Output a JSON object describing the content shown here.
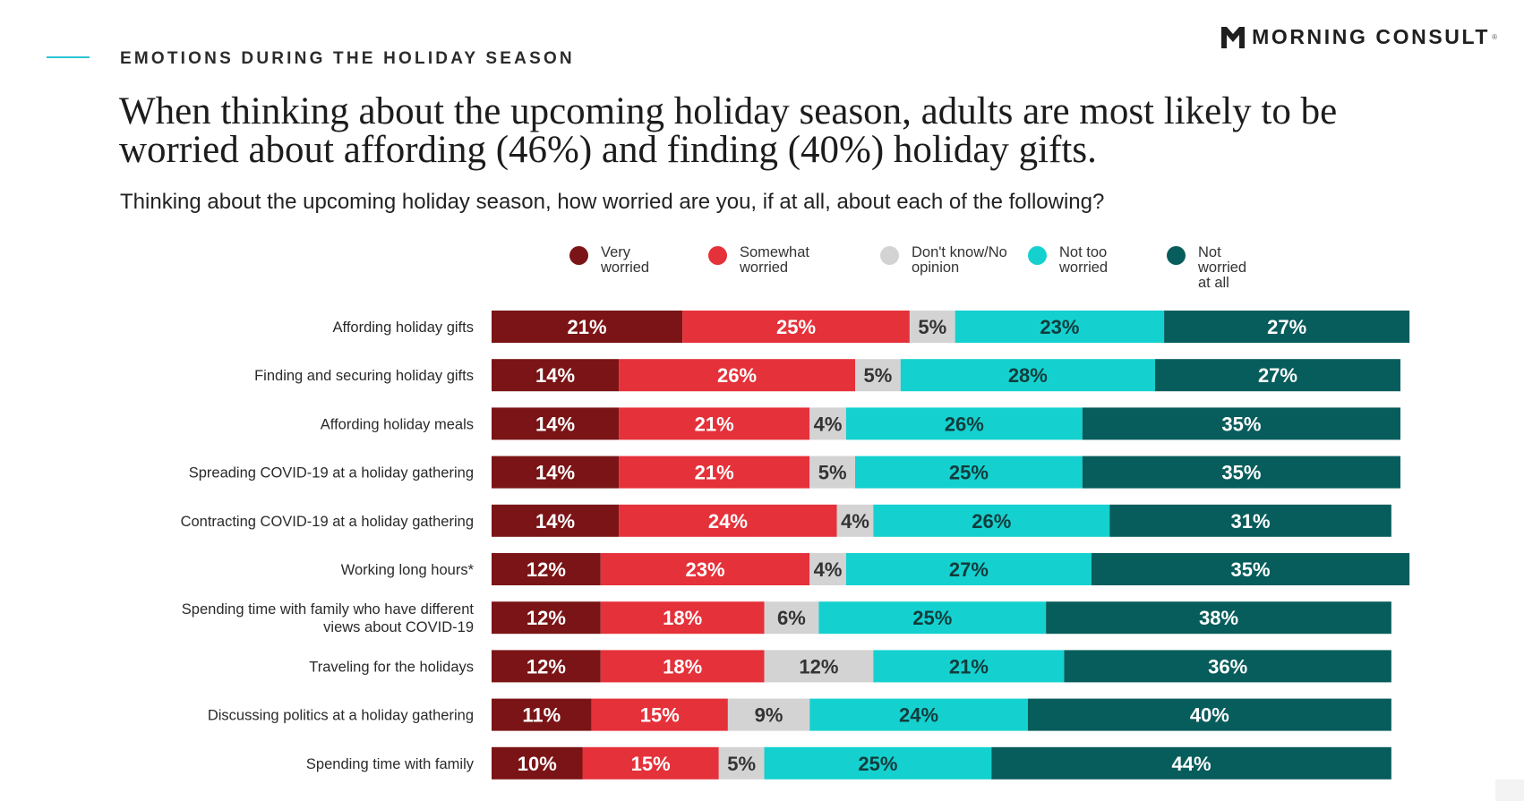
{
  "section_label": "EMOTIONS DURING THE HOLIDAY SEASON",
  "brand": {
    "name": "MORNING CONSULT",
    "registered_mark": "®",
    "logo_icon": "morning-consult-m-logo-icon"
  },
  "headline": "When thinking about the upcoming holiday season, adults are most likely to be worried about affording (46%) and finding (40%) holiday gifts.",
  "colors": {
    "accent_rule": "#2ec4d6",
    "very_worried": "#7b1416",
    "somewhat_worried": "#e5313a",
    "dont_know": "#d3d3d3",
    "not_too_worried": "#14d1cf",
    "not_worried_at_all": "#075d5c"
  },
  "chart_data": {
    "type": "bar",
    "orientation": "horizontal",
    "stacked": true,
    "title": "Thinking about the upcoming holiday season, how worried are you, if at all, about each of the following?",
    "xlabel": "",
    "ylabel": "",
    "xlim": [
      0,
      100
    ],
    "unit": "%",
    "grid": false,
    "legend_position": "top",
    "categories": [
      "Affording holiday gifts",
      "Finding and securing holiday gifts",
      "Affording holiday meals",
      "Spreading COVID-19 at a holiday gathering",
      "Contracting COVID-19 at a holiday gathering",
      "Working long hours*",
      "Spending time with family who have different views about COVID-19",
      "Traveling for the holidays",
      "Discussing politics at a holiday gathering",
      "Spending time with family"
    ],
    "series": [
      {
        "name": "Very worried",
        "color": "#7b1416",
        "label_color": "#ffffff",
        "values": [
          21,
          14,
          14,
          14,
          14,
          12,
          12,
          12,
          11,
          10
        ]
      },
      {
        "name": "Somewhat worried",
        "color": "#e5313a",
        "label_color": "#ffffff",
        "values": [
          25,
          26,
          21,
          21,
          24,
          23,
          18,
          18,
          15,
          15
        ]
      },
      {
        "name": "Don't know/No opinion",
        "color": "#d3d3d3",
        "label_color": "#333333",
        "values": [
          5,
          5,
          4,
          5,
          4,
          4,
          6,
          12,
          9,
          5
        ]
      },
      {
        "name": "Not too worried",
        "color": "#14d1cf",
        "label_color": "#123c3c",
        "values": [
          23,
          28,
          26,
          25,
          26,
          27,
          25,
          21,
          24,
          25
        ]
      },
      {
        "name": "Not worried at all",
        "color": "#075d5c",
        "label_color": "#ffffff",
        "values": [
          27,
          27,
          35,
          35,
          31,
          35,
          38,
          36,
          40,
          44
        ]
      }
    ]
  }
}
